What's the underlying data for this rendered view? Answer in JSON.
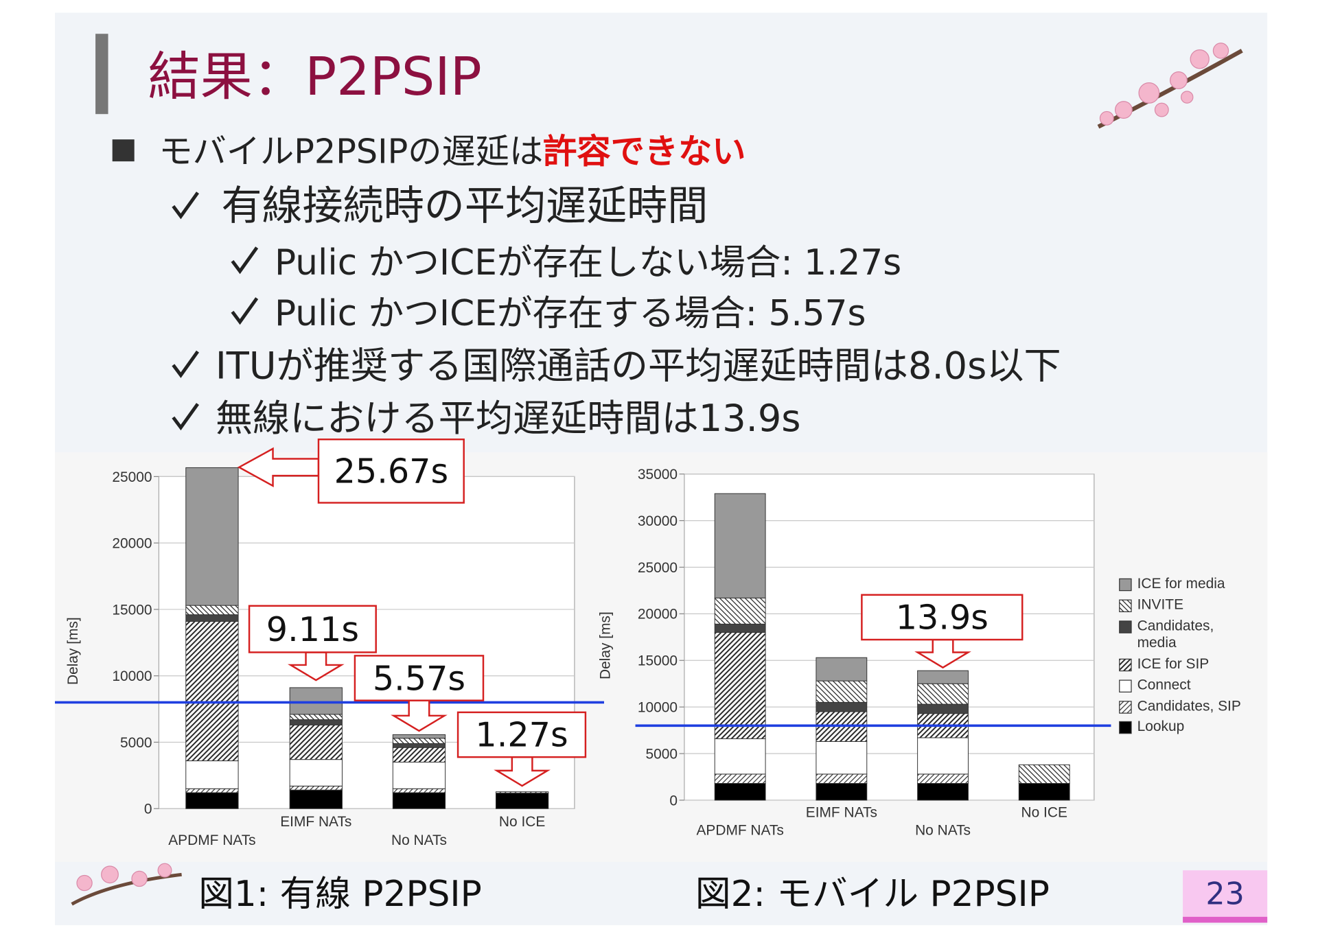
{
  "slide": {
    "title": "結果：P2PSIP",
    "bullet": {
      "text": "モバイルP2PSIPの遅延は",
      "emphasis": "許容できない"
    },
    "items": [
      "有線接続時の平均遅延時間",
      "Pulic かつICEが存在しない場合: 1.27s",
      "Pulic かつICEが存在する場合: 5.57s",
      "ITUが推奨する国際通話の平均遅延時間は8.0s以下",
      "無線における平均遅延時間は13.9s"
    ],
    "captions": [
      "図1: 有線 P2PSIP",
      "図2: モバイル P2PSIP"
    ],
    "page_number": "23"
  },
  "chart_data": [
    {
      "type": "stacked-bar",
      "ylabel": "Delay [ms]",
      "categories": [
        "APDMF NATs",
        "EIMF NATs",
        "No NATs",
        "No ICE"
      ],
      "ylim": [
        0,
        25000
      ],
      "yticks": [
        0,
        5000,
        10000,
        15000,
        20000,
        25000
      ],
      "grid": true,
      "series": [
        {
          "color": "#000000",
          "pattern": "solid",
          "values": [
            1200,
            1400,
            1200,
            1170
          ]
        },
        {
          "color": "#333333",
          "pattern": "hatch-fwd",
          "values": [
            300,
            300,
            300,
            100
          ]
        },
        {
          "color": "#ffffff",
          "pattern": "solid",
          "values": [
            2100,
            2000,
            2000,
            0
          ]
        },
        {
          "color": "#222222",
          "pattern": "hatch-fwd-dense",
          "values": [
            10500,
            2600,
            1100,
            0
          ]
        },
        {
          "color": "#444444",
          "pattern": "solid",
          "values": [
            500,
            400,
            300,
            0
          ]
        },
        {
          "color": "#222222",
          "pattern": "hatch-back",
          "values": [
            700,
            400,
            400,
            0
          ]
        },
        {
          "color": "#999999",
          "pattern": "solid",
          "values": [
            10370,
            2010,
            270,
            0
          ]
        }
      ],
      "annotations": [
        "25.67s",
        "9.11s",
        "5.57s",
        "1.27s"
      ],
      "reference_line": {
        "value": 8000,
        "color": "#1f3fe0"
      }
    },
    {
      "type": "stacked-bar",
      "ylabel": "Delay [ms]",
      "categories": [
        "APDMF NATs",
        "EIMF NATs",
        "No NATs",
        "No ICE"
      ],
      "ylim": [
        0,
        35000
      ],
      "yticks": [
        0,
        5000,
        10000,
        15000,
        20000,
        25000,
        30000,
        35000
      ],
      "grid": true,
      "legend": "right",
      "series": [
        {
          "name": "Lookup",
          "color": "#000000",
          "pattern": "solid",
          "values": [
            1800,
            1800,
            1800,
            1800
          ]
        },
        {
          "name": "Candidates, SIP",
          "color": "#333333",
          "pattern": "hatch-fwd",
          "values": [
            1000,
            1000,
            1000,
            0
          ]
        },
        {
          "name": "Connect",
          "color": "#ffffff",
          "pattern": "solid",
          "values": [
            3800,
            3500,
            3900,
            0
          ]
        },
        {
          "name": "ICE for SIP",
          "color": "#222222",
          "pattern": "hatch-fwd-dense",
          "values": [
            11400,
            3200,
            2600,
            0
          ]
        },
        {
          "name": "Candidates, media",
          "color": "#444444",
          "pattern": "solid",
          "values": [
            900,
            1000,
            1000,
            0
          ]
        },
        {
          "name": "INVITE",
          "color": "#222222",
          "pattern": "hatch-back",
          "values": [
            2800,
            2300,
            2200,
            2000
          ]
        },
        {
          "name": "ICE for media",
          "color": "#999999",
          "pattern": "solid",
          "values": [
            11200,
            2500,
            1400,
            0
          ]
        }
      ],
      "annotations": [
        "13.9s"
      ],
      "reference_line": {
        "value": 8000,
        "color": "#1f3fe0"
      }
    }
  ]
}
